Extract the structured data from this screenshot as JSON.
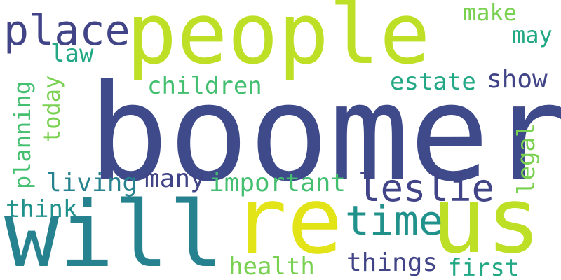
{
  "palette": {
    "navy": "#3e4a89",
    "slate": "#414487",
    "teal": "#26828e",
    "cyan": "#21918c",
    "jade": "#22a884",
    "green": "#44bf70",
    "lime": "#7ad151",
    "chartreuse": "#bddf26",
    "yellow": "#e2e418"
  },
  "words": {
    "boomer": "boomer",
    "people": "people",
    "will": "will",
    "re": "re",
    "us": "us",
    "place": "place",
    "leslie": "leslie",
    "time": "time",
    "children": "children",
    "estate": "estate",
    "show": "show",
    "make": "make",
    "may": "may",
    "law": "law",
    "today": "today",
    "planning": "planning",
    "living": "living",
    "many": "many",
    "important": "important",
    "legal": "legal",
    "think": "think",
    "health": "health",
    "things": "things",
    "first": "first"
  }
}
